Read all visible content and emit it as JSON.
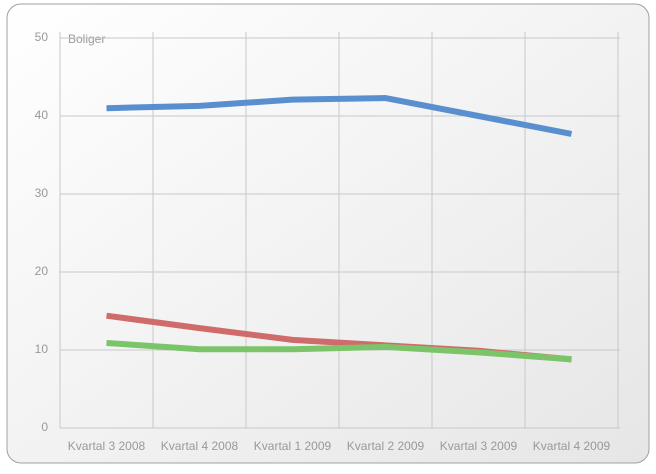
{
  "chart_data": {
    "type": "line",
    "y_label": "Boliger",
    "categories": [
      "Kvartal 3 2008",
      "Kvartal 4 2008",
      "Kvartal 1 2009",
      "Kvartal 2 2009",
      "Kvartal 3 2009",
      "Kvartal 4 2009"
    ],
    "series": [
      {
        "color": "#5a8fcf",
        "values": [
          41.0,
          41.3,
          42.1,
          42.3,
          40.0,
          37.7
        ]
      },
      {
        "color": "#d06b6b",
        "values": [
          14.4,
          12.8,
          11.3,
          10.6,
          9.9,
          8.8
        ]
      },
      {
        "color": "#7cc46a",
        "values": [
          10.9,
          10.1,
          10.1,
          10.4,
          9.7,
          8.8
        ]
      }
    ],
    "ylim": [
      0,
      50
    ],
    "yticks": [
      0,
      10,
      20,
      30,
      40,
      50
    ],
    "grid": true
  }
}
